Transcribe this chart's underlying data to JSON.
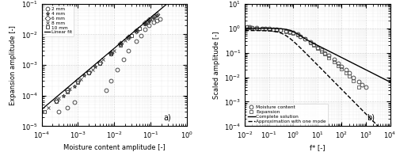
{
  "panel_a": {
    "xlabel": "Moisture content amplitude [-]",
    "ylabel": "Expansion amplitude [-]",
    "label_a": "a)",
    "xlim": [
      0.0001,
      1.0
    ],
    "ylim": [
      1e-05,
      0.1
    ],
    "linear_fit_slope": 0.35,
    "samples": {
      "2mm": {
        "marker": "o",
        "label": "2 mm",
        "x": [
          0.12,
          0.15,
          0.18,
          0.09,
          0.07,
          0.055,
          0.04,
          0.025,
          0.018,
          0.012,
          0.008,
          0.006,
          0.0003,
          0.0005,
          0.0008
        ],
        "y": [
          0.025,
          0.028,
          0.032,
          0.02,
          0.015,
          0.009,
          0.006,
          0.003,
          0.0015,
          0.0007,
          0.0003,
          0.00015,
          3e-05,
          4e-05,
          6e-05
        ]
      },
      "4mm": {
        "marker": "*",
        "label": "4 mm",
        "x": [
          0.12,
          0.15,
          0.09,
          0.07,
          0.04,
          0.025,
          0.015,
          0.008,
          0.003,
          0.0015,
          0.0008,
          0.0004
        ],
        "y": [
          0.035,
          0.042,
          0.028,
          0.022,
          0.013,
          0.008,
          0.005,
          0.0025,
          0.0009,
          0.00045,
          0.0002,
          0.0001
        ]
      },
      "6mm": {
        "marker": "D",
        "label": "6 mm",
        "x": [
          0.12,
          0.15,
          0.09,
          0.07,
          0.04,
          0.025,
          0.015,
          0.008,
          0.004,
          0.002,
          0.001,
          0.0005,
          0.00025
        ],
        "y": [
          0.038,
          0.045,
          0.03,
          0.024,
          0.013,
          0.008,
          0.005,
          0.0025,
          0.0012,
          0.0006,
          0.0003,
          0.00015,
          7e-05
        ]
      },
      "8mm": {
        "marker": "x",
        "label": "8 mm",
        "x": [
          0.1,
          0.07,
          0.04,
          0.02,
          0.01,
          0.005,
          0.0025,
          0.0012,
          0.0006,
          0.0003,
          0.00015
        ],
        "y": [
          0.032,
          0.022,
          0.013,
          0.0065,
          0.003,
          0.0015,
          0.0007,
          0.00035,
          0.00017,
          8e-05,
          4e-05
        ]
      },
      "10mm": {
        "marker": "s",
        "label": "10 mm",
        "x": [
          0.08,
          0.05,
          0.03,
          0.015,
          0.008,
          0.004,
          0.002,
          0.001,
          0.0005,
          0.00025,
          0.00012
        ],
        "y": [
          0.025,
          0.016,
          0.009,
          0.0045,
          0.0023,
          0.0011,
          0.00055,
          0.00027,
          0.00013,
          6.5e-05,
          3e-05
        ]
      }
    }
  },
  "panel_b": {
    "xlabel": "f* [-]",
    "ylabel": "Scaled amplitude [-]",
    "label_b": "b)",
    "xlim": [
      0.01,
      10000.0
    ],
    "ylim": [
      0.0001,
      10.0
    ],
    "mc_circles": {
      "f": [
        0.012,
        0.015,
        0.02,
        0.03,
        0.05,
        0.07,
        0.1,
        0.15,
        0.2,
        0.3,
        0.5,
        0.7,
        1.0,
        1.5,
        2.0,
        3.0,
        5.0,
        7.0,
        10.0,
        15.0,
        20.0,
        30.0,
        50.0,
        70.0,
        100.0,
        150.0,
        200.0,
        300.0,
        500.0,
        700.0,
        1000.0
      ],
      "amp": [
        1.15,
        1.1,
        1.05,
        1.02,
        1.0,
        0.98,
        0.96,
        0.93,
        0.9,
        0.85,
        0.78,
        0.72,
        0.65,
        0.56,
        0.48,
        0.38,
        0.28,
        0.22,
        0.17,
        0.13,
        0.1,
        0.075,
        0.052,
        0.038,
        0.028,
        0.02,
        0.015,
        0.01,
        0.0065,
        0.005,
        0.004
      ]
    },
    "exp_squares": {
      "f": [
        0.012,
        0.015,
        0.02,
        0.03,
        0.05,
        0.07,
        0.1,
        0.15,
        0.2,
        0.3,
        0.5,
        0.7,
        1.0,
        1.5,
        2.0,
        3.0,
        5.0,
        7.0,
        10.0,
        15.0,
        20.0,
        30.0,
        50.0,
        70.0,
        100.0,
        150.0,
        200.0,
        300.0,
        500.0
      ],
      "amp": [
        1.1,
        1.05,
        1.02,
        1.0,
        0.97,
        0.95,
        0.93,
        0.9,
        0.87,
        0.82,
        0.74,
        0.68,
        0.61,
        0.53,
        0.46,
        0.36,
        0.26,
        0.2,
        0.155,
        0.115,
        0.088,
        0.062,
        0.042,
        0.03,
        0.022,
        0.015,
        0.011,
        0.007,
        0.004
      ]
    }
  },
  "markersize": 3.5,
  "fontsize": 6
}
